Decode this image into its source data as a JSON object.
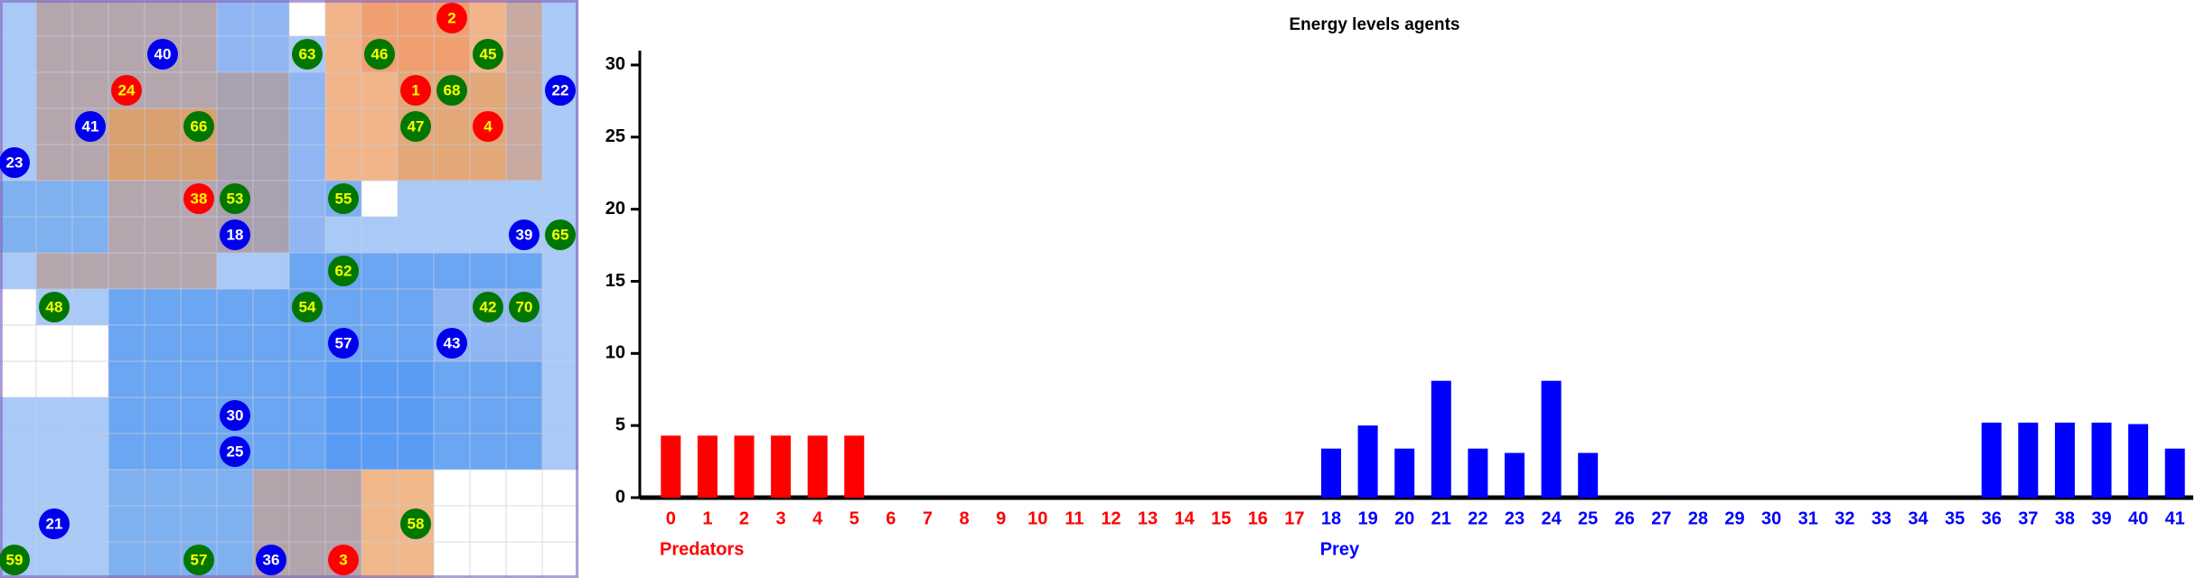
{
  "agents": [
    {
      "label": "2",
      "kind": "predator"
    },
    {
      "label": "40",
      "kind": "prey"
    },
    {
      "label": "63",
      "kind": "plant"
    },
    {
      "label": "46",
      "kind": "plant"
    },
    {
      "label": "45",
      "kind": "plant"
    },
    {
      "label": "24",
      "kind": "predator"
    },
    {
      "label": "1",
      "kind": "predator"
    },
    {
      "label": "68",
      "kind": "plant"
    },
    {
      "label": "22",
      "kind": "prey"
    },
    {
      "label": "41",
      "kind": "prey"
    },
    {
      "label": "66",
      "kind": "plant"
    },
    {
      "label": "47",
      "kind": "plant"
    },
    {
      "label": "4",
      "kind": "predator"
    },
    {
      "label": "23",
      "kind": "prey"
    },
    {
      "label": "38",
      "kind": "predator"
    },
    {
      "label": "53",
      "kind": "plant"
    },
    {
      "label": "55",
      "kind": "plant"
    },
    {
      "label": "18",
      "kind": "prey"
    },
    {
      "label": "39",
      "kind": "prey"
    },
    {
      "label": "65",
      "kind": "plant"
    },
    {
      "label": "62",
      "kind": "plant"
    },
    {
      "label": "48",
      "kind": "plant"
    },
    {
      "label": "54",
      "kind": "plant"
    },
    {
      "label": "42",
      "kind": "plant"
    },
    {
      "label": "70",
      "kind": "plant"
    },
    {
      "label": "57",
      "kind": "prey"
    },
    {
      "label": "43",
      "kind": "prey"
    },
    {
      "label": "30",
      "kind": "prey"
    },
    {
      "label": "25",
      "kind": "prey"
    },
    {
      "label": "21",
      "kind": "prey"
    },
    {
      "label": "58",
      "kind": "plant"
    },
    {
      "label": "59",
      "kind": "plant"
    },
    {
      "label": "57",
      "kind": "plant"
    },
    {
      "label": "36",
      "kind": "prey"
    },
    {
      "label": "3",
      "kind": "predator"
    }
  ],
  "chart_data": {
    "type": "bar",
    "title": "Energy levels agents",
    "categories": [
      "0",
      "1",
      "2",
      "3",
      "4",
      "5",
      "6",
      "7",
      "8",
      "9",
      "10",
      "11",
      "12",
      "13",
      "14",
      "15",
      "16",
      "17",
      "18",
      "19",
      "20",
      "21",
      "22",
      "23",
      "24",
      "25",
      "26",
      "27",
      "28",
      "29",
      "30",
      "31",
      "32",
      "33",
      "34",
      "35",
      "36",
      "37",
      "38",
      "39",
      "40",
      "41"
    ],
    "series": [
      {
        "name": "Predators",
        "color": "#ff0000",
        "values": [
          4.3,
          4.3,
          4.3,
          4.3,
          4.3,
          4.3,
          0,
          0,
          0,
          0,
          0,
          0,
          0,
          0,
          0,
          0,
          0,
          0,
          null,
          null,
          null,
          null,
          null,
          null,
          null,
          null,
          null,
          null,
          null,
          null,
          null,
          null,
          null,
          null,
          null,
          null,
          null,
          null,
          null,
          null,
          null,
          null
        ]
      },
      {
        "name": "Prey",
        "color": "#0000ff",
        "values": [
          null,
          null,
          null,
          null,
          null,
          null,
          null,
          null,
          null,
          null,
          null,
          null,
          null,
          null,
          null,
          null,
          null,
          null,
          3.4,
          5.0,
          3.4,
          8.1,
          3.4,
          3.1,
          8.1,
          3.1,
          0,
          0,
          0,
          0,
          0,
          0,
          0,
          0,
          0,
          0,
          5.2,
          5.2,
          5.2,
          5.2,
          5.1,
          3.4
        ]
      }
    ],
    "ylim": [
      0,
      31
    ],
    "yticks": [
      0,
      5,
      10,
      15,
      20,
      25,
      30
    ]
  }
}
